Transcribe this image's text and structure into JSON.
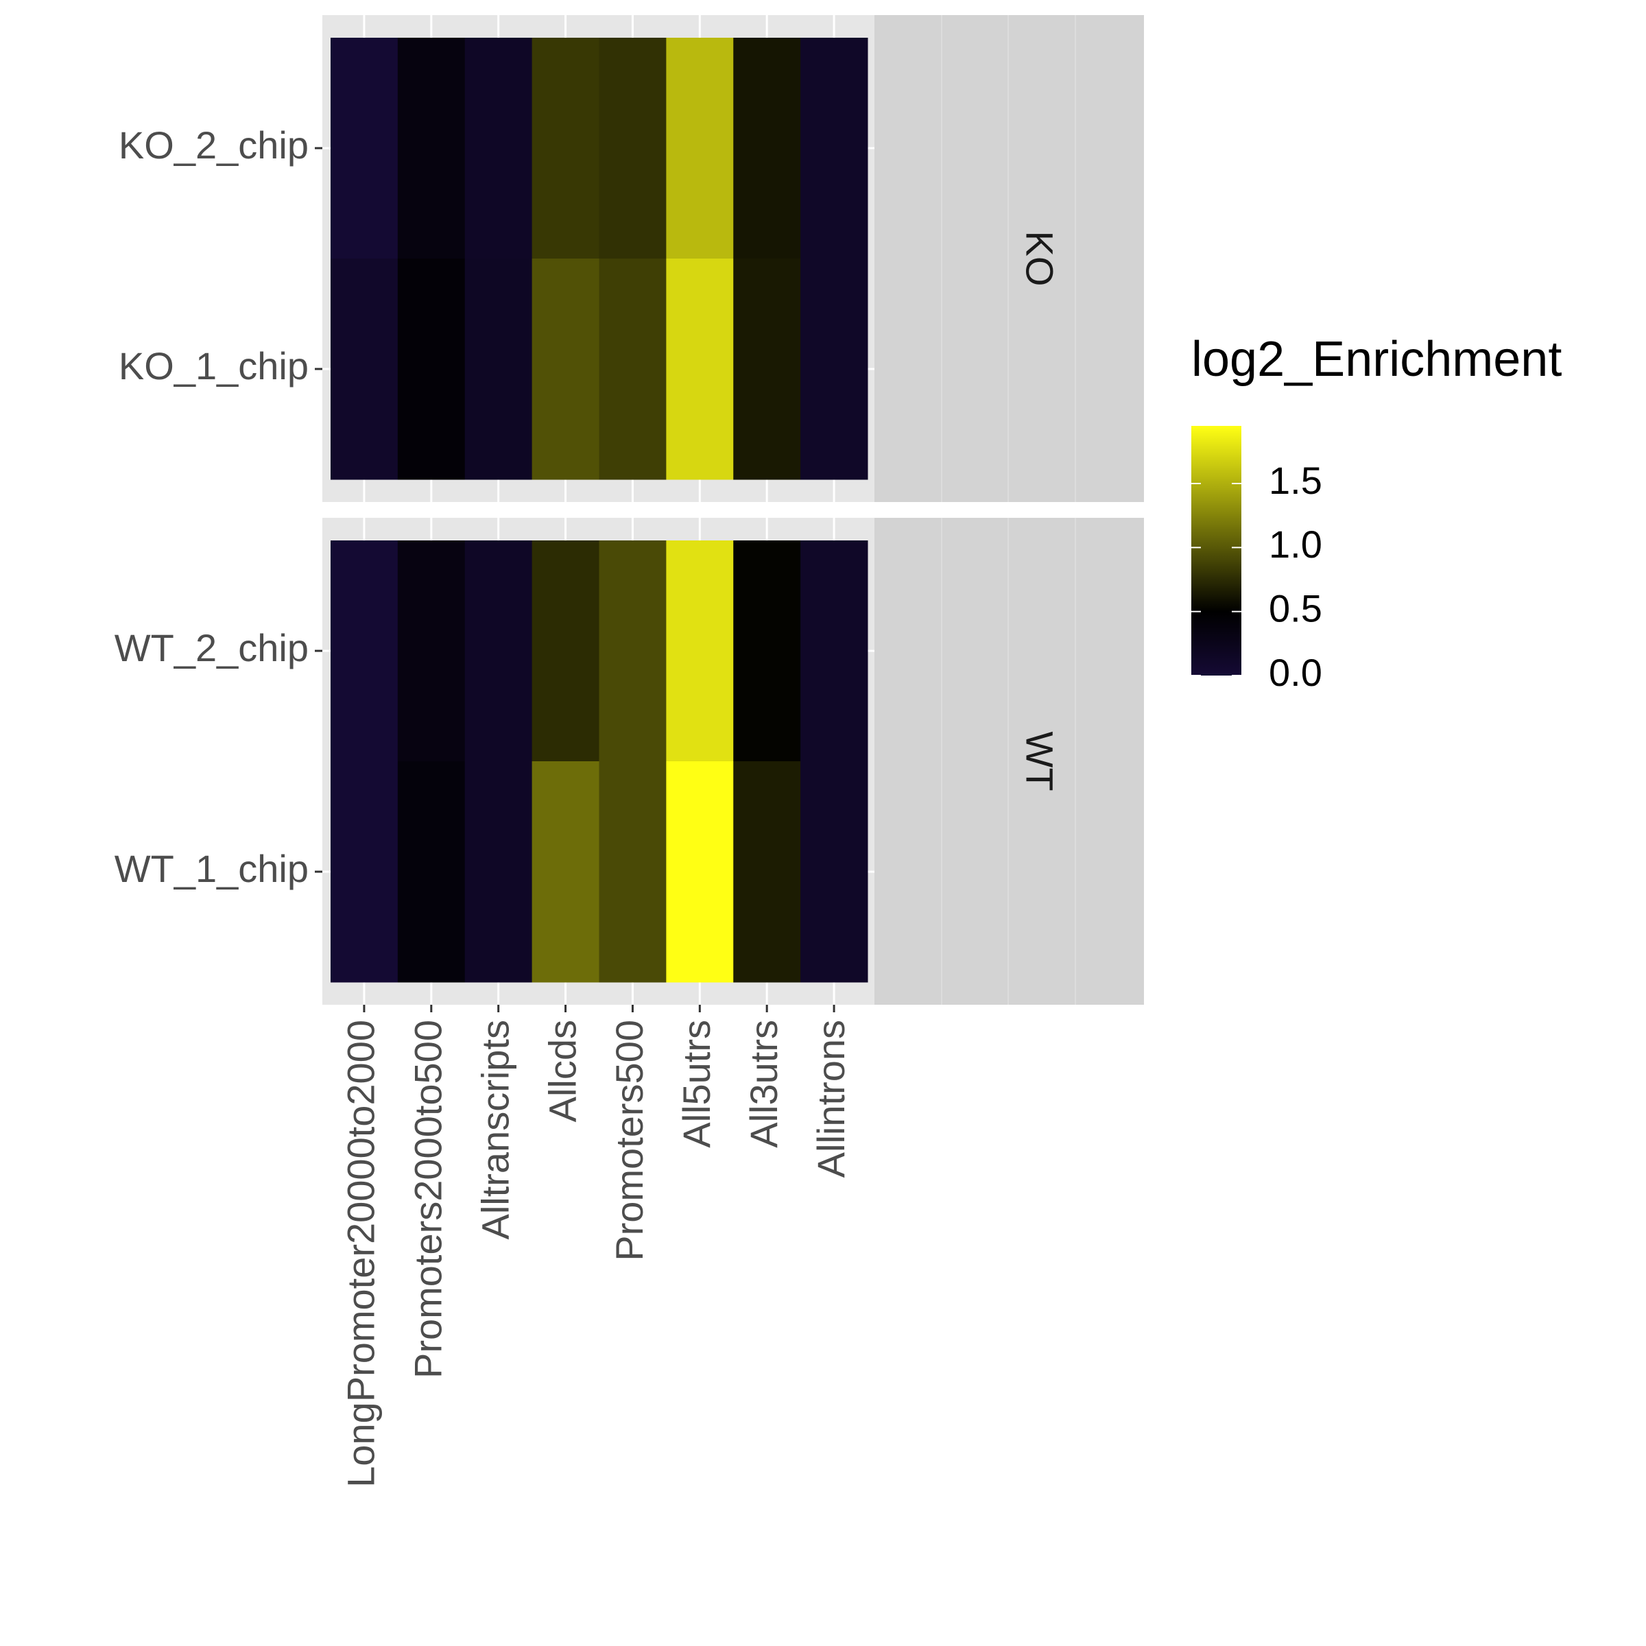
{
  "chart_data": {
    "type": "heatmap",
    "x_categories": [
      "LongPromoter20000to2000",
      "Promoters2000to500",
      "Alltranscripts",
      "Allcds",
      "Promoters500",
      "All5utrs",
      "All3utrs",
      "Allintrons"
    ],
    "facets": [
      {
        "label": "KO",
        "rows": [
          "KO_2_chip",
          "KO_1_chip"
        ],
        "values": [
          [
            0.02,
            0.36,
            0.14,
            0.82,
            0.78,
            1.55,
            0.62,
            0.12
          ],
          [
            0.1,
            0.43,
            0.16,
            0.96,
            0.86,
            1.72,
            0.64,
            0.12
          ]
        ]
      },
      {
        "label": "WT",
        "rows": [
          "WT_2_chip",
          "WT_1_chip"
        ],
        "values": [
          [
            0.02,
            0.34,
            0.14,
            0.75,
            0.92,
            1.78,
            0.52,
            0.12
          ],
          [
            0.02,
            0.4,
            0.14,
            1.12,
            0.92,
            1.95,
            0.66,
            0.12
          ]
        ]
      }
    ],
    "legend": {
      "title": "log2_Enrichment",
      "ticks": [
        0.0,
        0.5,
        1.0,
        1.5
      ],
      "tick_labels": [
        "0.0",
        "0.5",
        "1.0",
        "1.5"
      ],
      "range": [
        0.0,
        1.95
      ],
      "colors": [
        "#150a35",
        "#000000",
        "#ffff14"
      ],
      "color_stops": [
        0.0,
        0.5,
        1.95
      ],
      "placement": "right"
    },
    "panel_colors": {
      "panel_background": "#e6e6e6",
      "strip_background": "#d3d3d3",
      "gridline": "#ffffff"
    }
  }
}
